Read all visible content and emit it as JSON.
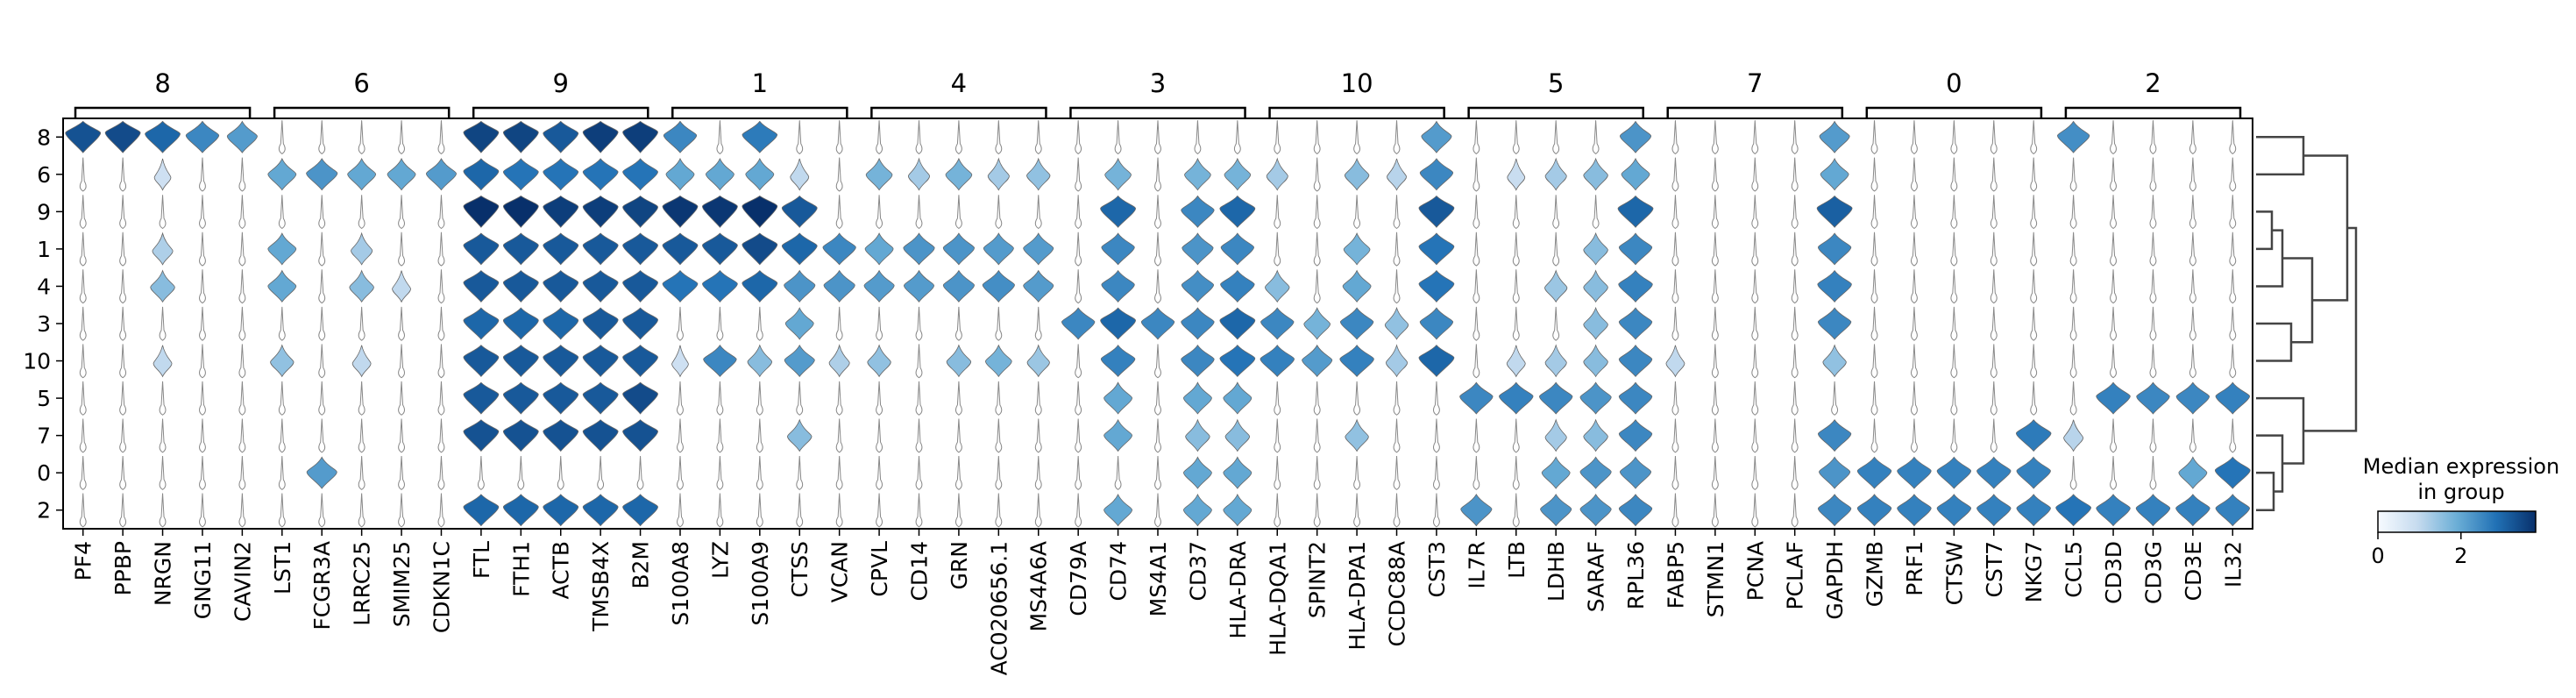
{
  "chart_data": {
    "type": "stacked_violin",
    "title": "",
    "xlabel": "",
    "ylabel": "",
    "row_categories": [
      "8",
      "6",
      "9",
      "1",
      "4",
      "3",
      "10",
      "5",
      "7",
      "0",
      "2"
    ],
    "group_labels": [
      "8",
      "6",
      "9",
      "1",
      "4",
      "3",
      "10",
      "5",
      "7",
      "0",
      "2"
    ],
    "genes": [
      "PF4",
      "PPBP",
      "NRGN",
      "GNG11",
      "CAVIN2",
      "LST1",
      "FCGR3A",
      "LRRC25",
      "SMIM25",
      "CDKN1C",
      "FTL",
      "FTH1",
      "ACTB",
      "TMSB4X",
      "B2M",
      "S100A8",
      "LYZ",
      "S100A9",
      "CTSS",
      "VCAN",
      "CPVL",
      "CD14",
      "GRN",
      "AC020656.1",
      "MS4A6A",
      "CD79A",
      "CD74",
      "MS4A1",
      "CD37",
      "HLA-DRA",
      "HLA-DQA1",
      "SPINT2",
      "HLA-DPA1",
      "CCDC88A",
      "CST3",
      "IL7R",
      "LTB",
      "LDHB",
      "SARAF",
      "RPL36",
      "FABP5",
      "STMN1",
      "PCNA",
      "PCLAF",
      "GAPDH",
      "GZMB",
      "PRF1",
      "CTSW",
      "CST7",
      "NKG7",
      "CCL5",
      "CD3D",
      "CD3G",
      "CD3E",
      "IL32"
    ],
    "colorbar": {
      "title_line1": "Median expression",
      "title_line2": "in group",
      "min": 0,
      "max": 3.8,
      "ticks": [
        "0",
        "2"
      ],
      "cmap": [
        "#f7fbff",
        "#c6dbef",
        "#6baed6",
        "#2171b5",
        "#08306b"
      ]
    },
    "dendrogram": true,
    "median_expression": [
      [
        3.3,
        3.4,
        3.0,
        2.5,
        2.2,
        0,
        0,
        0,
        0,
        0,
        3.5,
        3.5,
        3.2,
        3.6,
        3.6,
        2.5,
        0,
        2.7,
        0,
        0,
        0,
        0,
        0,
        0,
        0,
        0,
        0,
        0,
        0,
        0,
        0,
        0,
        0,
        0,
        2.2,
        0,
        0,
        0,
        0,
        2.3,
        0,
        0,
        0,
        0,
        2.2,
        0,
        0,
        0,
        0,
        0,
        2.4,
        0,
        0,
        0,
        0
      ],
      [
        0,
        0,
        0.8,
        0,
        0,
        2.0,
        2.3,
        2.0,
        2.0,
        2.2,
        3.0,
        2.8,
        2.8,
        2.8,
        2.8,
        2.0,
        2.0,
        2.0,
        1.0,
        0,
        1.8,
        1.3,
        1.8,
        1.3,
        1.5,
        0,
        1.8,
        0,
        1.8,
        1.8,
        1.3,
        0,
        1.6,
        1.1,
        2.5,
        0,
        0.9,
        1.3,
        1.6,
        2.0,
        0,
        0,
        0,
        0,
        2.0,
        0,
        0,
        0,
        0,
        0,
        0,
        0,
        0,
        0,
        0
      ],
      [
        0,
        0,
        0,
        0,
        0,
        0,
        0,
        0,
        0,
        0,
        3.8,
        3.8,
        3.6,
        3.6,
        3.5,
        3.7,
        3.7,
        3.8,
        3.2,
        0,
        0,
        0,
        0,
        0,
        0,
        0,
        3.0,
        0,
        2.5,
        3.0,
        0,
        0,
        0,
        0,
        3.2,
        0,
        0,
        0,
        0,
        3.0,
        0,
        0,
        0,
        0,
        3.1,
        0,
        0,
        0,
        0,
        0,
        0,
        0,
        0,
        0,
        0
      ],
      [
        0,
        0,
        1.2,
        0,
        0,
        2.0,
        0,
        1.3,
        0,
        0,
        3.2,
        3.2,
        3.2,
        3.2,
        3.2,
        3.2,
        3.2,
        3.4,
        3.0,
        2.5,
        2.0,
        2.3,
        2.3,
        2.2,
        2.2,
        0,
        2.5,
        0,
        2.3,
        2.5,
        0,
        0,
        1.8,
        0,
        2.8,
        0,
        0,
        0,
        1.6,
        2.5,
        0,
        0,
        0,
        0,
        2.5,
        0,
        0,
        0,
        0,
        0,
        0,
        0,
        0,
        0,
        0
      ],
      [
        0,
        0,
        1.6,
        0,
        0,
        2.0,
        0,
        1.6,
        1.0,
        0,
        3.2,
        3.2,
        3.2,
        3.2,
        3.2,
        2.8,
        2.8,
        3.0,
        2.3,
        2.3,
        2.2,
        2.2,
        2.3,
        2.4,
        2.2,
        0,
        2.5,
        0,
        2.4,
        2.6,
        1.6,
        0,
        2.0,
        0,
        2.8,
        0,
        0,
        1.4,
        1.6,
        2.6,
        0,
        0,
        0,
        0,
        2.6,
        0,
        0,
        0,
        0,
        0,
        0,
        0,
        0,
        0,
        0
      ],
      [
        0,
        0,
        0,
        0,
        0,
        0,
        0,
        0,
        0,
        0,
        3.0,
        3.0,
        3.0,
        3.2,
        3.2,
        0,
        0,
        0,
        2.0,
        0,
        0,
        0,
        0,
        0,
        0,
        2.5,
        3.0,
        2.5,
        2.5,
        3.0,
        2.5,
        1.8,
        2.5,
        1.5,
        2.5,
        0,
        0,
        0,
        1.6,
        2.5,
        0,
        0,
        0,
        0,
        2.5,
        0,
        0,
        0,
        0,
        0,
        0,
        0,
        0,
        0,
        0
      ],
      [
        0,
        0,
        1.0,
        0,
        0,
        1.5,
        0,
        1.0,
        0,
        0,
        3.2,
        3.2,
        3.2,
        3.2,
        3.2,
        0.8,
        2.5,
        1.6,
        2.2,
        1.2,
        1.5,
        0,
        1.6,
        1.8,
        1.4,
        0,
        2.6,
        0,
        2.5,
        2.8,
        2.6,
        2.2,
        2.6,
        1.3,
        3.0,
        0,
        1.0,
        1.3,
        1.6,
        2.5,
        1.0,
        0,
        0,
        0,
        1.5,
        0,
        0,
        0,
        0,
        0,
        0,
        0,
        0,
        0,
        0
      ],
      [
        0,
        0,
        0,
        0,
        0,
        0,
        0,
        0,
        0,
        0,
        3.2,
        3.2,
        3.2,
        3.2,
        3.4,
        0,
        0,
        0,
        0,
        0,
        0,
        0,
        0,
        0,
        0,
        0,
        2.0,
        0,
        2.0,
        2.0,
        0,
        0,
        0,
        0,
        0,
        2.5,
        2.6,
        2.5,
        2.3,
        2.5,
        0,
        0,
        0,
        0,
        0,
        0,
        0,
        0,
        0,
        0,
        0,
        2.6,
        2.5,
        2.5,
        2.6
      ],
      [
        0,
        0,
        0,
        0,
        0,
        0,
        0,
        0,
        0,
        0,
        3.3,
        3.3,
        3.3,
        3.3,
        3.3,
        0,
        0,
        0,
        1.6,
        0,
        0,
        0,
        0,
        0,
        0,
        0,
        2.0,
        0,
        1.6,
        1.6,
        0,
        0,
        1.5,
        0,
        0,
        0,
        0,
        1.3,
        1.6,
        2.5,
        0,
        0,
        0,
        0,
        2.5,
        0,
        0,
        0,
        0,
        2.7,
        1.1,
        0,
        0,
        0,
        0
      ],
      [
        0,
        0,
        0,
        0,
        0,
        0,
        2.2,
        0,
        0,
        0,
        0,
        0,
        0,
        0,
        0,
        0,
        0,
        0,
        0,
        0,
        0,
        0,
        0,
        0,
        0,
        0,
        0,
        0,
        2.0,
        2.0,
        0,
        0,
        0,
        0,
        0,
        0,
        0,
        2.0,
        2.3,
        2.3,
        0,
        0,
        0,
        0,
        2.3,
        2.6,
        2.6,
        2.6,
        2.6,
        2.6,
        0,
        0,
        0,
        2.0,
        2.8
      ],
      [
        0,
        0,
        0,
        0,
        0,
        0,
        0,
        0,
        0,
        0,
        3.0,
        3.0,
        3.0,
        3.0,
        3.0,
        0,
        0,
        0,
        0,
        0,
        0,
        0,
        0,
        0,
        0,
        0,
        2.0,
        0,
        2.0,
        2.0,
        0,
        0,
        0,
        0,
        0,
        2.3,
        0,
        2.3,
        2.3,
        2.5,
        0,
        0,
        0,
        0,
        2.5,
        2.6,
        2.6,
        2.6,
        2.6,
        2.6,
        2.8,
        2.6,
        2.6,
        2.6,
        2.6
      ]
    ]
  }
}
